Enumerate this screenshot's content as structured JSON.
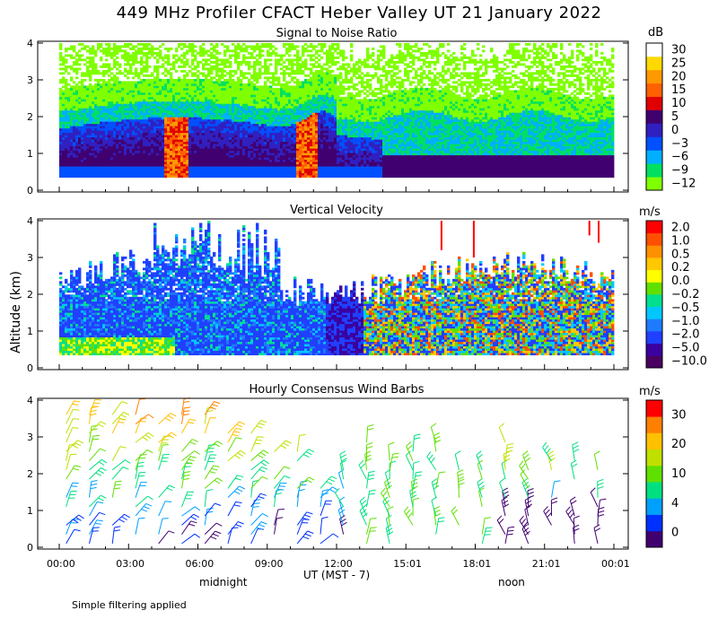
{
  "title": "449 MHz Profiler CFACT Heber Valley UT 21 January 2022",
  "y_axis_label": "Altitude (km)",
  "x_axis_label": "UT  (MST - 7)",
  "x_markers": {
    "midnight": "midnight",
    "noon": "noon"
  },
  "footnote": "Simple filtering applied",
  "colors": {
    "snr": [
      "#80ff00",
      "#00e060",
      "#00b0ff",
      "#0050ff",
      "#3020c0",
      "#400070",
      "#e00000",
      "#ff6000",
      "#ff9900",
      "#ffd800",
      "#ffffff"
    ],
    "velocity": [
      "#4a0060",
      "#3a00a0",
      "#2040ff",
      "#1e7bff",
      "#00c8ff",
      "#00e090",
      "#60e000",
      "#ffff00",
      "#ffc800",
      "#ff9000",
      "#ff5000",
      "#ff0000"
    ],
    "wind": [
      "#400070",
      "#0030ff",
      "#00a0ff",
      "#00e080",
      "#60e000",
      "#c0e000",
      "#ffc000",
      "#ff8000",
      "#ff0000"
    ]
  },
  "chart_data": [
    {
      "type": "heatmap",
      "title": "Signal to Noise Ratio",
      "unit": "dB",
      "colorbar_ticks": [
        "30",
        "25",
        "20",
        "15",
        "10",
        "5",
        "0",
        "−3",
        "−6",
        "−9",
        "−12"
      ],
      "xlabel": "UT  (MST - 7)",
      "ylabel": "Altitude (km)",
      "xlim": [
        0,
        24
      ],
      "ylim": [
        0,
        4
      ],
      "x_tick_labels": [
        "00:00",
        "03:00",
        "06:00",
        "09:00",
        "12:00",
        "15:01",
        "18:01",
        "21:01",
        "00:01"
      ],
      "y_tick_labels": [
        "0",
        "1",
        "2",
        "3",
        "4"
      ]
    },
    {
      "type": "heatmap",
      "title": "Vertical Velocity",
      "unit": "m/s",
      "colorbar_ticks": [
        "2.0",
        "1.0",
        "0.5",
        "0.2",
        "0.0",
        "−0.2",
        "−0.5",
        "−1.0",
        "−2.0",
        "−5.0",
        "−10.0"
      ],
      "xlim": [
        0,
        24
      ],
      "ylim": [
        0,
        4
      ],
      "y_tick_labels": [
        "0",
        "1",
        "2",
        "3",
        "4"
      ]
    },
    {
      "type": "scatter",
      "title": "Hourly Consensus Wind Barbs",
      "unit": "m/s",
      "colorbar_ticks": [
        "30",
        "20",
        "10",
        "4",
        "0"
      ],
      "xlim": [
        0,
        24
      ],
      "ylim": [
        0,
        4
      ],
      "y_tick_labels": [
        "0",
        "1",
        "2",
        "3",
        "4"
      ],
      "x_tick_labels": [
        "00:00",
        "03:00",
        "06:00",
        "09:00",
        "12:00",
        "15:01",
        "18:01",
        "21:01",
        "00:01"
      ]
    }
  ]
}
